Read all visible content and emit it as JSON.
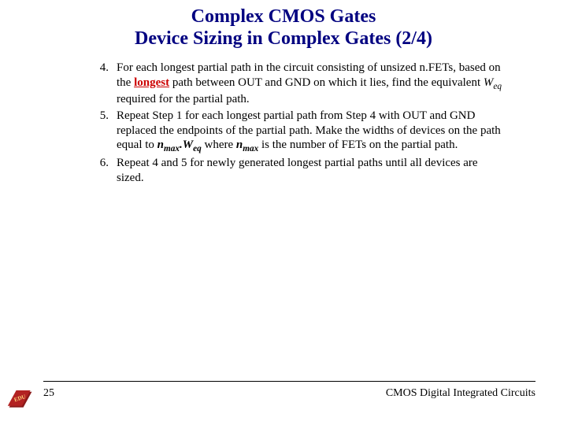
{
  "title": {
    "line1": "Complex CMOS Gates",
    "line2": "Device Sizing in Complex Gates (2/4)",
    "color": "#000080",
    "fontsize": 24
  },
  "list": {
    "start": 4,
    "items": [
      {
        "num": "4.",
        "segments": [
          {
            "t": "For each longest partial path in the circuit consisting of unsized n.FETs, based on the "
          },
          {
            "t": "longest",
            "b": true,
            "u": true,
            "red": true
          },
          {
            "t": " path between OUT and GND on which it lies, find the equivalent "
          },
          {
            "t": "W",
            "i": true
          },
          {
            "t": "eq",
            "sub": true
          },
          {
            "t": " required for the partial path."
          }
        ]
      },
      {
        "num": "5.",
        "segments": [
          {
            "t": "Repeat Step 1 for each longest partial path from Step 4 with OUT and GND replaced the endpoints of the partial path. Make the widths of devices on the path equal to "
          },
          {
            "t": "n",
            "b": true,
            "i": true
          },
          {
            "t": "max",
            "sub": true,
            "b": true
          },
          {
            "t": ".W",
            "i": true,
            "b": true
          },
          {
            "t": "eq",
            "sub": true,
            "b": true
          },
          {
            "t": " where "
          },
          {
            "t": "n",
            "b": true,
            "i": true
          },
          {
            "t": "max",
            "sub": true,
            "b": true
          },
          {
            "t": " is the number of FETs on the partial path."
          }
        ]
      },
      {
        "num": "6.",
        "segments": [
          {
            "t": "Repeat 4 and 5 for newly generated longest partial paths until all devices are sized."
          }
        ]
      }
    ],
    "fontsize": 15
  },
  "footer": {
    "page": "25",
    "text": "CMOS Digital Integrated Circuits",
    "fontsize": 14
  },
  "logo": {
    "fill1": "#8b1a1a",
    "fill2": "#b22222",
    "letters": "EDU",
    "letter_color": "#ffd27a"
  }
}
